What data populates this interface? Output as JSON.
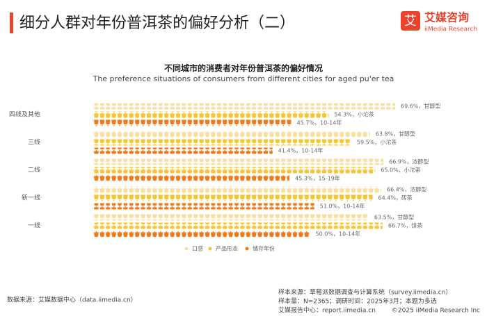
{
  "header": {
    "title": "细分人群对年份普洱茶的偏好分析（二）",
    "logo": "艾媒咨询",
    "logo_en": "iiMedia Research"
  },
  "chart_data": {
    "type": "pictograph-bar",
    "title": "不同城市的消费者对年份普洱茶的偏好情况",
    "subtitle": "The preference situations of consumers from different cities for aged pu'er tea",
    "categories": [
      "四线及其他",
      "三线",
      "二线",
      "新一线",
      "一线"
    ],
    "series": [
      {
        "name": "口感",
        "color": "#f7dfa0",
        "values": [
          69.6,
          63.8,
          66.9,
          66.4,
          63.5
        ],
        "value_labels": [
          "69.6%，甘醇型",
          "63.8%，甘醇型",
          "66.9%，浓醇型",
          "66.4%，浓醇型",
          "63.5%，甘醇型"
        ]
      },
      {
        "name": "产品形态",
        "color": "#f6c531",
        "values": [
          54.3,
          59.5,
          65.0,
          64.4,
          66.7
        ],
        "value_labels": [
          "54.3%，小沱茶",
          "59.5%，小沱茶",
          "65.0%，小沱茶",
          "64.4%，砖茶",
          "66.7%，饼茶"
        ]
      },
      {
        "name": "储存年份",
        "color": "#ef7a1a",
        "values": [
          45.7,
          41.4,
          45.3,
          51.0,
          50.0
        ],
        "value_labels": [
          "45.7%，10-14年",
          "41.4%，10-14年",
          "45.3%，15-19年",
          "51.0%，10-14年",
          "50.0%，10-14年"
        ]
      }
    ]
  },
  "footer": {
    "source": "数据来源：艾媒数据中心（data.iimedia.cn）",
    "sample_source": "样本来源：草莓派数据调查与计算系统（survey.iimedia.cn）",
    "sample": "样本量：N=2365；调研时间：2025年3月；本题为多选",
    "report": "艾媒报告中心：report.iimedia.cn",
    "copyright": "©2025  iiMedia Research  Inc"
  }
}
